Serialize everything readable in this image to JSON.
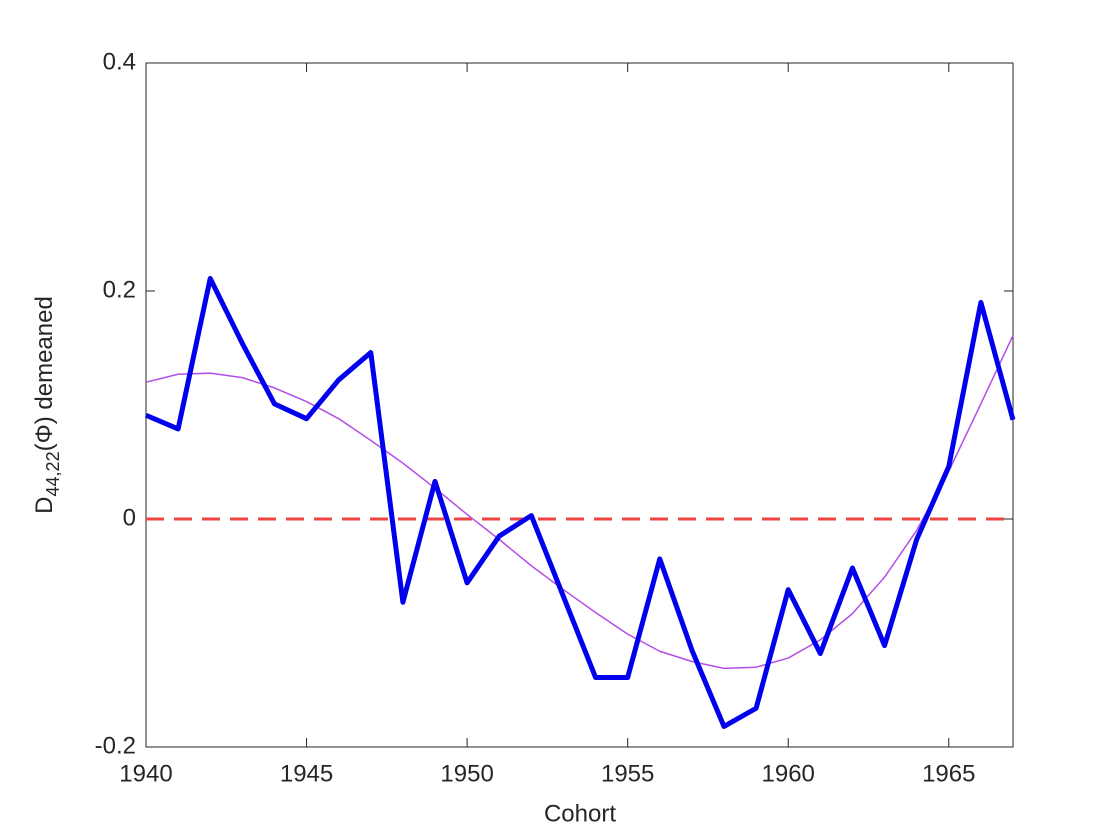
{
  "chart_data": {
    "type": "line",
    "xlabel": "Cohort",
    "ylabel": {
      "main": "D",
      "subscript": "44,22",
      "rest": "(Φ) demeaned"
    },
    "x": [
      1940,
      1941,
      1942,
      1943,
      1944,
      1945,
      1946,
      1947,
      1948,
      1949,
      1950,
      1951,
      1952,
      1953,
      1954,
      1955,
      1956,
      1957,
      1958,
      1959,
      1960,
      1961,
      1962,
      1963,
      1964,
      1965,
      1966,
      1967
    ],
    "series": [
      {
        "color": "#0000ee",
        "width": 5,
        "dash": false,
        "values": [
          0.091,
          0.079,
          0.211,
          0.154,
          0.101,
          0.088,
          0.122,
          0.146,
          -0.073,
          0.033,
          -0.056,
          -0.015,
          0.003,
          -0.068,
          -0.139,
          -0.139,
          -0.035,
          -0.115,
          -0.182,
          -0.166,
          -0.062,
          -0.118,
          -0.043,
          -0.111,
          -0.018,
          0.046,
          0.19,
          0.087
        ]
      },
      {
        "color": "#b44ee8",
        "width": 1.5,
        "dash": false,
        "values": [
          0.12,
          0.127,
          0.128,
          0.124,
          0.115,
          0.103,
          0.088,
          0.069,
          0.049,
          0.027,
          0.004,
          -0.018,
          -0.041,
          -0.062,
          -0.082,
          -0.101,
          -0.116,
          -0.125,
          -0.131,
          -0.13,
          -0.122,
          -0.106,
          -0.083,
          -0.051,
          -0.01,
          0.042,
          0.101,
          0.161
        ]
      },
      {
        "color": "#ee4444",
        "width": 3,
        "dash": true,
        "values": [
          0,
          0,
          0,
          0,
          0,
          0,
          0,
          0,
          0,
          0,
          0,
          0,
          0,
          0,
          0,
          0,
          0,
          0,
          0,
          0,
          0,
          0,
          0,
          0,
          0,
          0,
          0,
          0
        ]
      }
    ],
    "xlim": [
      1940,
      1967
    ],
    "xticks": [
      1940,
      1945,
      1950,
      1955,
      1960,
      1965
    ],
    "ylim": [
      -0.2,
      0.4
    ],
    "yticks": [
      -0.2,
      0,
      0.2,
      0.4
    ],
    "grid": false
  }
}
